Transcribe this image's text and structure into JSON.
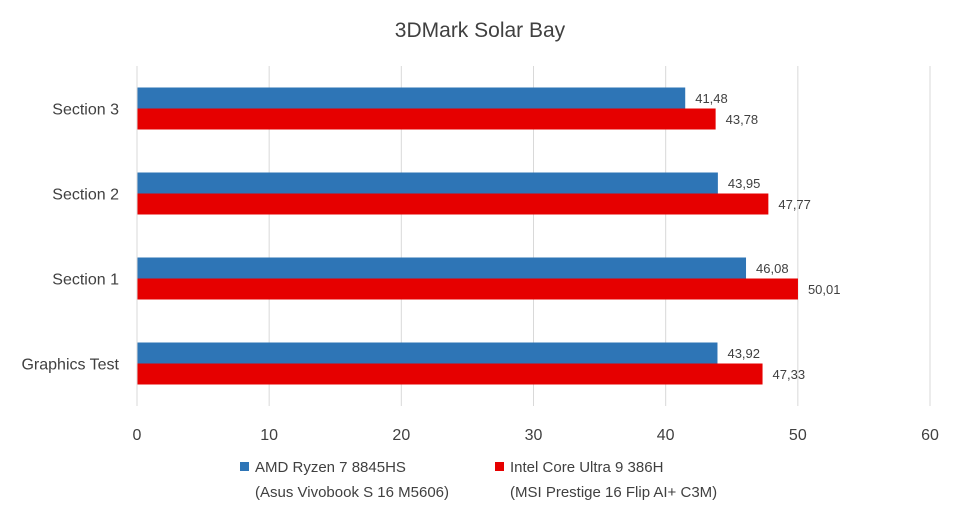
{
  "chart_data": {
    "type": "bar",
    "orientation": "horizontal",
    "title": "3DMark Solar Bay",
    "categories": [
      "Section 3",
      "Section 2",
      "Section 1",
      "Graphics Test"
    ],
    "series": [
      {
        "name": "AMD Ryzen 7 8845HS",
        "subname": "(Asus Vivobook S 16 M5606)",
        "color": "#2e75b6",
        "values": [
          41.48,
          43.95,
          46.08,
          43.92
        ],
        "labels": [
          "41,48",
          "43,95",
          "46,08",
          "43,92"
        ]
      },
      {
        "name": "Intel Core Ultra 9 386H",
        "subname": "(MSI Prestige 16 Flip AI+ C3M)",
        "color": "#e60000",
        "values": [
          43.78,
          47.77,
          50.01,
          47.33
        ],
        "labels": [
          "43,78",
          "47,77",
          "50,01",
          "47,33"
        ]
      }
    ],
    "xlim": [
      0,
      60
    ],
    "xticks": [
      "0",
      "10",
      "20",
      "30",
      "40",
      "50",
      "60"
    ],
    "xlabel": "",
    "ylabel": "",
    "grid": true,
    "legend": "bottom"
  }
}
